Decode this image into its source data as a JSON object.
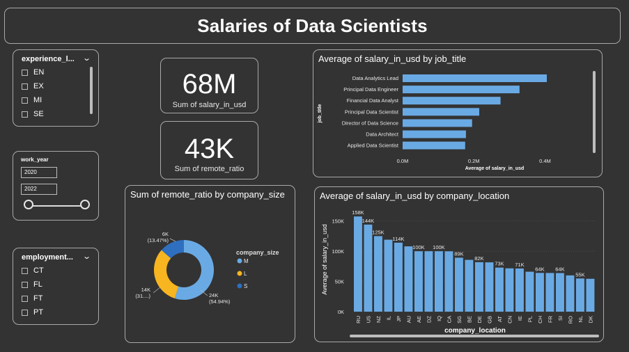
{
  "header": {
    "title": "Salaries of Data Scientists"
  },
  "experience_slicer": {
    "title": "experience_l...",
    "items": [
      "EN",
      "EX",
      "MI",
      "SE"
    ]
  },
  "year_slicer": {
    "title": "work_year",
    "start": "2020",
    "end": "2022"
  },
  "employment_slicer": {
    "title": "employment...",
    "items": [
      "CT",
      "FL",
      "FT",
      "PT"
    ]
  },
  "cards": {
    "salary": {
      "value": "68M",
      "label": "Sum of salary_in_usd"
    },
    "remote": {
      "value": "43K",
      "label": "Sum of remote_ratio"
    }
  },
  "colors": {
    "bar": "#6aaae4",
    "M": "#6aaae4",
    "L": "#f7b520",
    "S": "#2f6fbf",
    "background": "#333333"
  },
  "chart_data": [
    {
      "type": "bar",
      "orientation": "horizontal",
      "title": "Average of salary_in_usd by job_title",
      "xlabel": "Average of salary_in_usd",
      "ylabel": "job_title",
      "categories": [
        "Data Analytics Lead",
        "Principal Data Engineer",
        "Financial Data Analyst",
        "Principal Data Scientist",
        "Director of Data Science",
        "Data Architect",
        "Applied Data Scientist"
      ],
      "values": [
        405000,
        328333,
        275000,
        215242,
        195074,
        177874,
        175655
      ],
      "xticks": [
        "0.0M",
        "0.2M",
        "0.4M"
      ],
      "xlim": [
        0,
        450000
      ]
    },
    {
      "type": "pie",
      "donut": true,
      "title": "Sum of remote_ratio by company_size",
      "legend_title": "company_size",
      "legend_position": "right",
      "slices": [
        {
          "name": "M",
          "value": 23.7,
          "label": "24K",
          "pct": "(54.94%)"
        },
        {
          "name": "L",
          "value": 13.6,
          "label": "14K",
          "pct": "(31....)"
        },
        {
          "name": "S",
          "value": 5.8,
          "label": "6K",
          "pct": "(13.47%)"
        }
      ]
    },
    {
      "type": "bar",
      "title": "Average of salary_in_usd by company_location",
      "xlabel": "company_location",
      "ylabel": "Average of salary_in_usd",
      "ylim": [
        0,
        160000
      ],
      "yticks": [
        "0K",
        "50K",
        "100K",
        "150K"
      ],
      "categories": [
        "RU",
        "US",
        "NZ",
        "IL",
        "JP",
        "AU",
        "AE",
        "DZ",
        "IQ",
        "CA",
        "SG",
        "BE",
        "DE",
        "GB",
        "AT",
        "CN",
        "IE",
        "PL",
        "CH",
        "FR",
        "SI",
        "RO",
        "NL",
        "DK"
      ],
      "values": [
        157500,
        144055,
        125000,
        119059,
        114127,
        108042,
        100000,
        100000,
        100000,
        99824,
        89294,
        85699,
        81887,
        81583,
        72921,
        71665,
        71444,
        66083,
        64114,
        63971,
        63831,
        60000,
        54945,
        54386
      ],
      "data_labels": [
        "158K",
        "144K",
        "125K",
        "",
        "114K",
        "",
        "100K",
        "",
        "100K",
        "",
        "89K",
        "",
        "82K",
        "",
        "73K",
        "",
        "71K",
        "",
        "64K",
        "",
        "64K",
        "",
        "55K",
        ""
      ]
    }
  ]
}
